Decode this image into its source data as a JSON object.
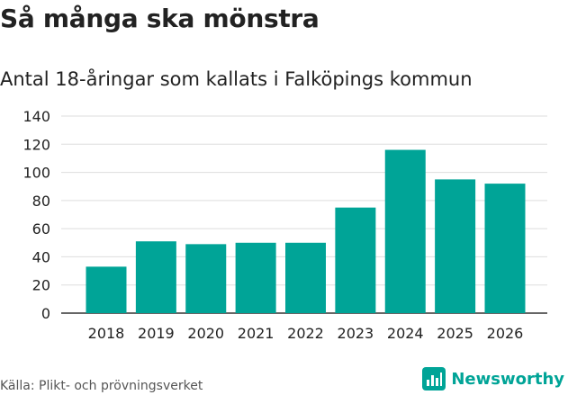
{
  "header": {
    "title": "Så många ska mönstra",
    "subtitle": "Antal 18-åringar som kallats i Falköpings kommun"
  },
  "footer": {
    "source": "Källa: Plikt- och prövningsverket",
    "brand": "Newsworthy",
    "brand_icon": "bar-chart-logo-icon"
  },
  "colors": {
    "bar": "#00a497",
    "grid": "#dddddd",
    "axis": "#333333",
    "text": "#222222",
    "brand": "#00a497"
  },
  "chart_data": {
    "type": "bar",
    "title": "Så många ska mönstra",
    "subtitle": "Antal 18-åringar som kallats i Falköpings kommun",
    "xlabel": "",
    "ylabel": "",
    "categories": [
      "2018",
      "2019",
      "2020",
      "2021",
      "2022",
      "2023",
      "2024",
      "2025",
      "2026"
    ],
    "values": [
      33,
      51,
      49,
      50,
      50,
      75,
      116,
      95,
      92
    ],
    "ylim": [
      0,
      140
    ],
    "yticks": [
      0,
      20,
      40,
      60,
      80,
      100,
      120,
      140
    ],
    "grid": true,
    "legend": "none"
  }
}
